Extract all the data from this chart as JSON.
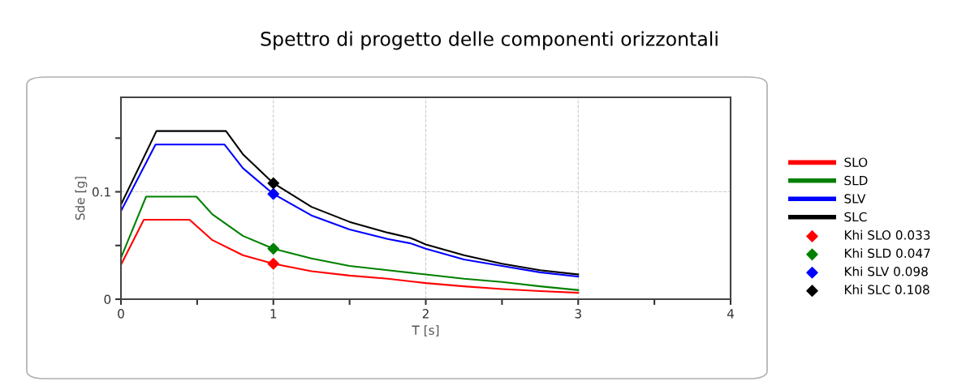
{
  "chart_data": {
    "type": "line",
    "title": "Spettro di progetto delle componenti orizzontali",
    "xlabel": "T [s]",
    "ylabel": "Sde [g]",
    "xlim": [
      0,
      4
    ],
    "xticks": [
      0,
      {
        "value": 0.5,
        "label": null
      },
      1,
      {
        "value": 1.5,
        "label": null
      },
      2,
      {
        "value": 2.5,
        "label": null
      },
      3,
      {
        "value": 3.5,
        "label": null
      },
      4
    ],
    "ylim": [
      0,
      0.188
    ],
    "yticks": [
      0,
      {
        "value": 0.05,
        "label": null
      },
      0.1,
      {
        "value": 0.15,
        "label": null
      }
    ],
    "grid": true,
    "legend": "right",
    "line_style": "solid",
    "series": [
      {
        "name": "SLO",
        "color": "#ff0000",
        "x": [
          0,
          0.15,
          0.45,
          0.6,
          0.8,
          1,
          1.25,
          1.5,
          1.75,
          2,
          2.25,
          2.5,
          2.75,
          3
        ],
        "values": [
          0.032,
          0.074,
          0.074,
          0.055,
          0.041,
          0.033,
          0.026,
          0.022,
          0.019,
          0.015,
          0.012,
          0.0095,
          0.0075,
          0.006
        ]
      },
      {
        "name": "SLD",
        "color": "#008000",
        "x": [
          0,
          0.165,
          0.495,
          0.6,
          0.8,
          1,
          1.25,
          1.5,
          1.75,
          2,
          2.25,
          2.5,
          2.75,
          3
        ],
        "values": [
          0.0385,
          0.0955,
          0.0955,
          0.079,
          0.059,
          0.047,
          0.038,
          0.031,
          0.027,
          0.023,
          0.019,
          0.016,
          0.012,
          0.0085
        ]
      },
      {
        "name": "SLV",
        "color": "#0000ff",
        "x": [
          0,
          0.227,
          0.68,
          0.8,
          1,
          1.25,
          1.5,
          1.75,
          1.9,
          2,
          2.25,
          2.5,
          2.75,
          3
        ],
        "values": [
          0.082,
          0.144,
          0.144,
          0.122,
          0.098,
          0.078,
          0.065,
          0.056,
          0.052,
          0.047,
          0.037,
          0.031,
          0.025,
          0.021
        ]
      },
      {
        "name": "SLC",
        "color": "#000000",
        "x": [
          0,
          0.233,
          0.689,
          0.8,
          1,
          1.25,
          1.5,
          1.75,
          1.9,
          2,
          2.25,
          2.5,
          2.75,
          3
        ],
        "values": [
          0.088,
          0.1566,
          0.1566,
          0.135,
          0.108,
          0.086,
          0.072,
          0.062,
          0.057,
          0.051,
          0.041,
          0.033,
          0.027,
          0.023
        ]
      },
      {
        "name": "Khi SLO 0.033",
        "type": "scatter",
        "marker": "diamond",
        "color": "#ff0000",
        "x": [
          1
        ],
        "values": [
          0.033
        ]
      },
      {
        "name": "Khi SLD 0.047",
        "type": "scatter",
        "marker": "diamond",
        "color": "#008000",
        "x": [
          1
        ],
        "values": [
          0.047
        ]
      },
      {
        "name": "Khi SLV 0.098",
        "type": "scatter",
        "marker": "diamond",
        "color": "#0000ff",
        "x": [
          1
        ],
        "values": [
          0.098
        ]
      },
      {
        "name": "Khi SLC 0.108",
        "type": "scatter",
        "marker": "diamond",
        "color": "#000000",
        "x": [
          1
        ],
        "values": [
          0.108
        ]
      }
    ]
  }
}
